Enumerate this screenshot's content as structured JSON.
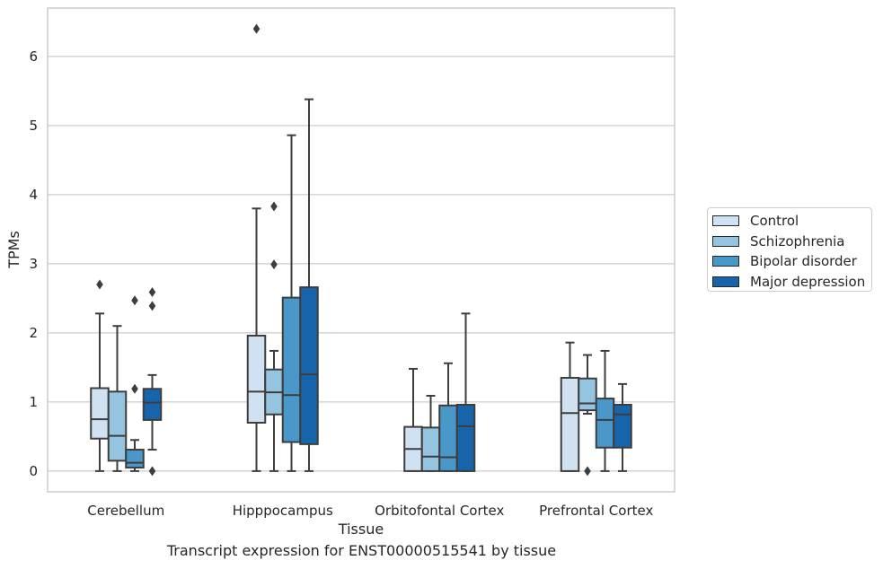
{
  "chart_data": {
    "type": "box",
    "title": "",
    "caption": "Transcript expression for ENST00000515541 by tissue",
    "xlabel": "Tissue",
    "ylabel": "TPMs",
    "ylim": [
      -0.3,
      6.7
    ],
    "yticks": [
      0,
      1,
      2,
      3,
      4,
      5,
      6
    ],
    "grid": "horizontal",
    "legend_position": "right",
    "categories": [
      "Cerebellum",
      "Hipppocampus",
      "Orbitofontal Cortex",
      "Prefrontal Cortex"
    ],
    "series": [
      {
        "name": "Control",
        "color": "#d0e1f2",
        "boxes": [
          {
            "min": 0,
            "q1": 0.47,
            "median": 0.75,
            "q3": 1.2,
            "max": 2.28,
            "outliers": [
              2.7
            ]
          },
          {
            "min": 0,
            "q1": 0.7,
            "median": 1.15,
            "q3": 1.96,
            "max": 3.8,
            "outliers": [
              6.4
            ]
          },
          {
            "min": 0,
            "q1": 0,
            "median": 0.32,
            "q3": 0.64,
            "max": 1.48,
            "outliers": []
          },
          {
            "min": 0,
            "q1": 0,
            "median": 0.84,
            "q3": 1.35,
            "max": 1.86,
            "outliers": []
          }
        ]
      },
      {
        "name": "Schizophrenia",
        "color": "#94c4df",
        "boxes": [
          {
            "min": 0,
            "q1": 0.15,
            "median": 0.51,
            "q3": 1.15,
            "max": 2.1,
            "outliers": []
          },
          {
            "min": 0,
            "q1": 0.82,
            "median": 1.14,
            "q3": 1.47,
            "max": 1.74,
            "outliers": [
              2.99,
              3.83
            ]
          },
          {
            "min": 0,
            "q1": 0,
            "median": 0.21,
            "q3": 0.63,
            "max": 1.09,
            "outliers": []
          },
          {
            "min": 0.83,
            "q1": 0.88,
            "median": 0.98,
            "q3": 1.34,
            "max": 1.68,
            "outliers": [
              0
            ]
          }
        ]
      },
      {
        "name": "Bipolar disorder",
        "color": "#4a98c9",
        "boxes": [
          {
            "min": 0,
            "q1": 0.05,
            "median": 0.12,
            "q3": 0.31,
            "max": 0.45,
            "outliers": [
              1.19,
              2.47
            ]
          },
          {
            "min": 0,
            "q1": 0.42,
            "median": 1.1,
            "q3": 2.51,
            "max": 4.86,
            "outliers": []
          },
          {
            "min": 0,
            "q1": 0,
            "median": 0.2,
            "q3": 0.95,
            "max": 1.56,
            "outliers": []
          },
          {
            "min": 0,
            "q1": 0.34,
            "median": 0.74,
            "q3": 1.05,
            "max": 1.74,
            "outliers": []
          }
        ]
      },
      {
        "name": "Major depression",
        "color": "#1764ab",
        "boxes": [
          {
            "min": 0.31,
            "q1": 0.74,
            "median": 0.99,
            "q3": 1.19,
            "max": 1.39,
            "outliers": [
              0,
              2.39,
              2.59
            ]
          },
          {
            "min": 0,
            "q1": 0.39,
            "median": 1.4,
            "q3": 2.66,
            "max": 5.38,
            "outliers": []
          },
          {
            "min": 0,
            "q1": 0,
            "median": 0.65,
            "q3": 0.96,
            "max": 2.28,
            "outliers": []
          },
          {
            "min": 0,
            "q1": 0.34,
            "median": 0.82,
            "q3": 0.96,
            "max": 1.26,
            "outliers": []
          }
        ]
      }
    ]
  }
}
